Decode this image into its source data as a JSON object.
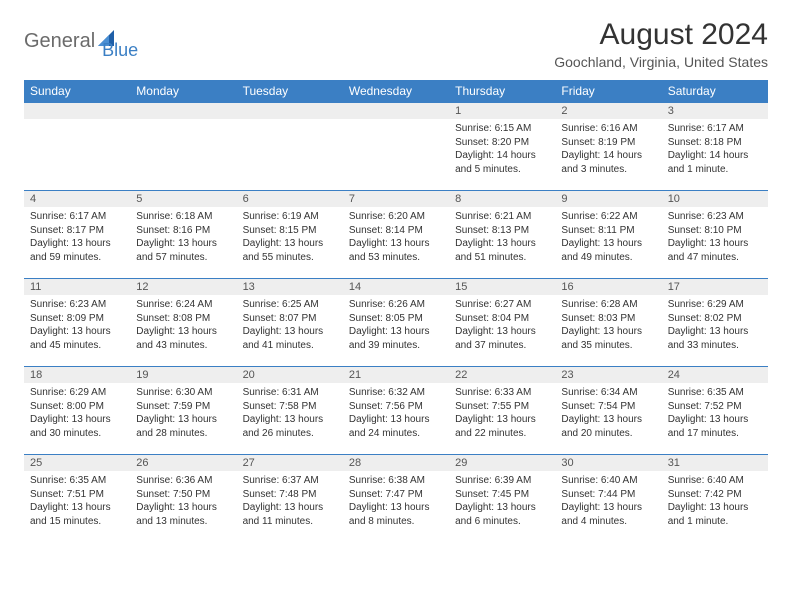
{
  "brand": {
    "general": "General",
    "blue": "Blue"
  },
  "title": "August 2024",
  "location": "Goochland, Virginia, United States",
  "colors": {
    "header_bg": "#3b7fc4",
    "header_text": "#ffffff",
    "daynum_bg": "#eeeeee",
    "border": "#3b7fc4",
    "logo_gray": "#6b6b6b",
    "logo_blue": "#3b7fc4"
  },
  "weekdays": [
    "Sunday",
    "Monday",
    "Tuesday",
    "Wednesday",
    "Thursday",
    "Friday",
    "Saturday"
  ],
  "first_weekday_index": 4,
  "days": [
    {
      "n": 1,
      "sr": "6:15 AM",
      "ss": "8:20 PM",
      "dl": "14 hours and 5 minutes."
    },
    {
      "n": 2,
      "sr": "6:16 AM",
      "ss": "8:19 PM",
      "dl": "14 hours and 3 minutes."
    },
    {
      "n": 3,
      "sr": "6:17 AM",
      "ss": "8:18 PM",
      "dl": "14 hours and 1 minute."
    },
    {
      "n": 4,
      "sr": "6:17 AM",
      "ss": "8:17 PM",
      "dl": "13 hours and 59 minutes."
    },
    {
      "n": 5,
      "sr": "6:18 AM",
      "ss": "8:16 PM",
      "dl": "13 hours and 57 minutes."
    },
    {
      "n": 6,
      "sr": "6:19 AM",
      "ss": "8:15 PM",
      "dl": "13 hours and 55 minutes."
    },
    {
      "n": 7,
      "sr": "6:20 AM",
      "ss": "8:14 PM",
      "dl": "13 hours and 53 minutes."
    },
    {
      "n": 8,
      "sr": "6:21 AM",
      "ss": "8:13 PM",
      "dl": "13 hours and 51 minutes."
    },
    {
      "n": 9,
      "sr": "6:22 AM",
      "ss": "8:11 PM",
      "dl": "13 hours and 49 minutes."
    },
    {
      "n": 10,
      "sr": "6:23 AM",
      "ss": "8:10 PM",
      "dl": "13 hours and 47 minutes."
    },
    {
      "n": 11,
      "sr": "6:23 AM",
      "ss": "8:09 PM",
      "dl": "13 hours and 45 minutes."
    },
    {
      "n": 12,
      "sr": "6:24 AM",
      "ss": "8:08 PM",
      "dl": "13 hours and 43 minutes."
    },
    {
      "n": 13,
      "sr": "6:25 AM",
      "ss": "8:07 PM",
      "dl": "13 hours and 41 minutes."
    },
    {
      "n": 14,
      "sr": "6:26 AM",
      "ss": "8:05 PM",
      "dl": "13 hours and 39 minutes."
    },
    {
      "n": 15,
      "sr": "6:27 AM",
      "ss": "8:04 PM",
      "dl": "13 hours and 37 minutes."
    },
    {
      "n": 16,
      "sr": "6:28 AM",
      "ss": "8:03 PM",
      "dl": "13 hours and 35 minutes."
    },
    {
      "n": 17,
      "sr": "6:29 AM",
      "ss": "8:02 PM",
      "dl": "13 hours and 33 minutes."
    },
    {
      "n": 18,
      "sr": "6:29 AM",
      "ss": "8:00 PM",
      "dl": "13 hours and 30 minutes."
    },
    {
      "n": 19,
      "sr": "6:30 AM",
      "ss": "7:59 PM",
      "dl": "13 hours and 28 minutes."
    },
    {
      "n": 20,
      "sr": "6:31 AM",
      "ss": "7:58 PM",
      "dl": "13 hours and 26 minutes."
    },
    {
      "n": 21,
      "sr": "6:32 AM",
      "ss": "7:56 PM",
      "dl": "13 hours and 24 minutes."
    },
    {
      "n": 22,
      "sr": "6:33 AM",
      "ss": "7:55 PM",
      "dl": "13 hours and 22 minutes."
    },
    {
      "n": 23,
      "sr": "6:34 AM",
      "ss": "7:54 PM",
      "dl": "13 hours and 20 minutes."
    },
    {
      "n": 24,
      "sr": "6:35 AM",
      "ss": "7:52 PM",
      "dl": "13 hours and 17 minutes."
    },
    {
      "n": 25,
      "sr": "6:35 AM",
      "ss": "7:51 PM",
      "dl": "13 hours and 15 minutes."
    },
    {
      "n": 26,
      "sr": "6:36 AM",
      "ss": "7:50 PM",
      "dl": "13 hours and 13 minutes."
    },
    {
      "n": 27,
      "sr": "6:37 AM",
      "ss": "7:48 PM",
      "dl": "13 hours and 11 minutes."
    },
    {
      "n": 28,
      "sr": "6:38 AM",
      "ss": "7:47 PM",
      "dl": "13 hours and 8 minutes."
    },
    {
      "n": 29,
      "sr": "6:39 AM",
      "ss": "7:45 PM",
      "dl": "13 hours and 6 minutes."
    },
    {
      "n": 30,
      "sr": "6:40 AM",
      "ss": "7:44 PM",
      "dl": "13 hours and 4 minutes."
    },
    {
      "n": 31,
      "sr": "6:40 AM",
      "ss": "7:42 PM",
      "dl": "13 hours and 1 minute."
    }
  ],
  "labels": {
    "sunrise": "Sunrise:",
    "sunset": "Sunset:",
    "daylight": "Daylight:"
  }
}
